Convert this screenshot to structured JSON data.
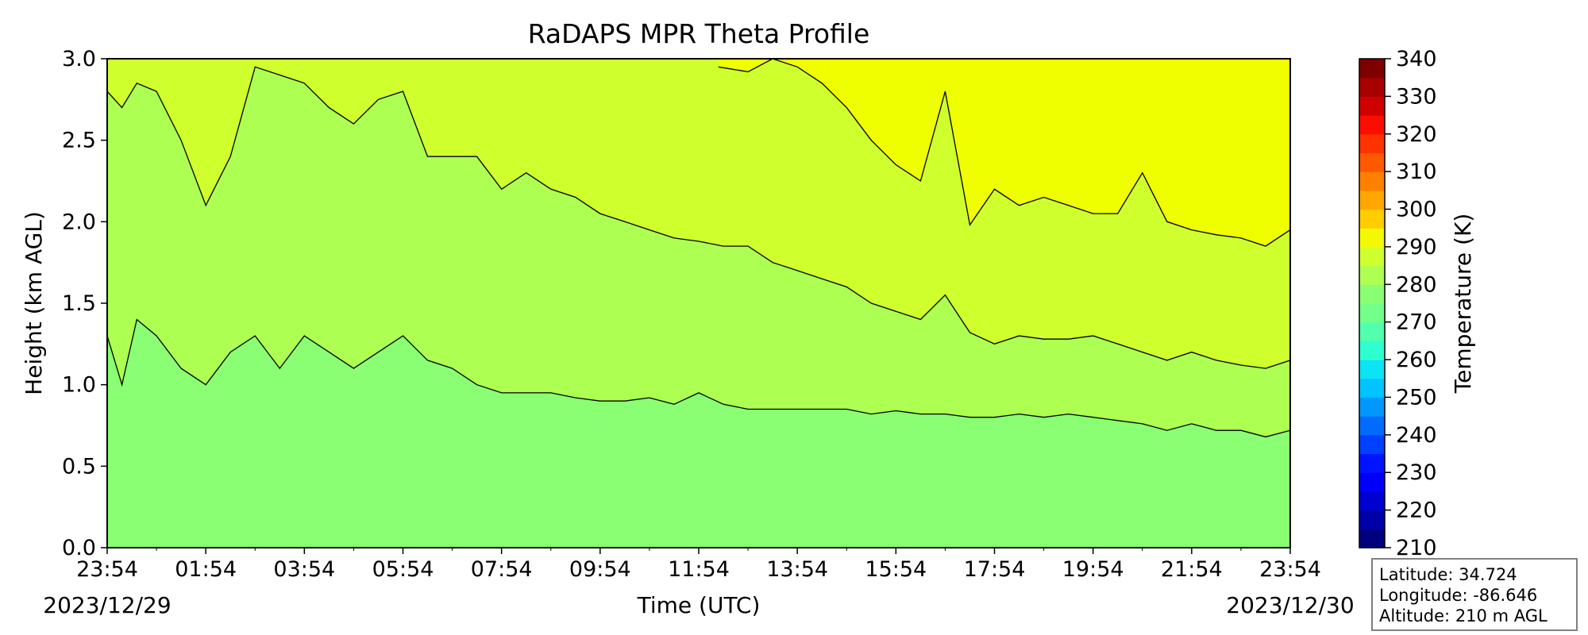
{
  "chart_data": {
    "type": "contour",
    "title": "RaDAPS MPR Theta Profile",
    "xlabel": "Time (UTC)",
    "ylabel": "Height (km AGL)",
    "x_tick_labels": [
      "23:54",
      "01:54",
      "03:54",
      "05:54",
      "07:54",
      "09:54",
      "11:54",
      "13:54",
      "15:54",
      "17:54",
      "19:54",
      "21:54",
      "23:54"
    ],
    "x_range_hours": [
      0,
      24
    ],
    "start_date_label": "2023/12/29",
    "end_date_label": "2023/12/30",
    "y_ticks": [
      "0.0",
      "0.5",
      "1.0",
      "1.5",
      "2.0",
      "2.5",
      "3.0"
    ],
    "ylim": [
      0,
      3.0
    ],
    "colorbar": {
      "label": "Temperature (K)",
      "ticks": [
        210,
        220,
        230,
        240,
        250,
        260,
        270,
        280,
        290,
        300,
        310,
        320,
        330,
        340
      ],
      "min": 210,
      "max": 340,
      "step": 5,
      "colors": [
        "#00007f",
        "#0000a8",
        "#0000d1",
        "#0000fa",
        "#0014ff",
        "#0040ff",
        "#006cff",
        "#0098ff",
        "#00c4ff",
        "#0ce4f4",
        "#2effd0",
        "#52ffad",
        "#73ff8a",
        "#8aff73",
        "#adff52",
        "#d0ff2e",
        "#f4f802",
        "#ffcd00",
        "#ffa700",
        "#ff8000",
        "#ff5900",
        "#ff3300",
        "#fa0e00",
        "#d10000",
        "#a80000",
        "#7f0000"
      ]
    },
    "contour_levels_K": [
      {
        "range": [
          275,
          280
        ],
        "color": "#8aff73"
      },
      {
        "range": [
          280,
          285
        ],
        "color": "#adff52"
      },
      {
        "range": [
          285,
          290
        ],
        "color": "#d0ff2e"
      },
      {
        "range": [
          290,
          295
        ],
        "color": "#f0ff00"
      }
    ],
    "contour_boundaries_km": [
      {
        "name": "280 K",
        "x_hours": [
          0,
          0.3,
          0.6,
          1.0,
          1.5,
          2.0,
          2.5,
          3.0,
          3.5,
          4.0,
          4.5,
          5.0,
          5.5,
          6.0,
          6.5,
          7.0,
          7.5,
          8.0,
          8.5,
          9.0,
          9.5,
          10.0,
          10.5,
          11.0,
          11.5,
          12.0,
          12.5,
          13.0,
          13.5,
          14.0,
          14.5,
          15.0,
          15.5,
          16.0,
          16.5,
          17.0,
          17.5,
          18.0,
          18.5,
          19.0,
          19.5,
          20.0,
          20.5,
          21.0,
          21.5,
          22.0,
          22.5,
          23.0,
          23.5,
          24.0
        ],
        "y_km": [
          1.3,
          1.0,
          1.4,
          1.3,
          1.1,
          1.0,
          1.2,
          1.3,
          1.1,
          1.3,
          1.2,
          1.1,
          1.2,
          1.3,
          1.15,
          1.1,
          1.0,
          0.95,
          0.95,
          0.95,
          0.92,
          0.9,
          0.9,
          0.92,
          0.88,
          0.95,
          0.88,
          0.85,
          0.85,
          0.85,
          0.85,
          0.85,
          0.82,
          0.84,
          0.82,
          0.82,
          0.8,
          0.8,
          0.82,
          0.8,
          0.82,
          0.8,
          0.78,
          0.76,
          0.72,
          0.76,
          0.72,
          0.72,
          0.68,
          0.72
        ]
      },
      {
        "name": "285 K",
        "x_hours": [
          0,
          0.3,
          0.6,
          1.0,
          1.5,
          2.0,
          2.5,
          3.0,
          3.5,
          4.0,
          4.5,
          5.0,
          5.5,
          6.0,
          6.5,
          7.0,
          7.5,
          8.0,
          8.5,
          9.0,
          9.5,
          10.0,
          10.5,
          11.0,
          11.5,
          12.0,
          12.5,
          13.0,
          13.5,
          14.0,
          14.5,
          15.0,
          15.5,
          16.0,
          16.5,
          17.0,
          17.5,
          18.0,
          18.5,
          19.0,
          19.5,
          20.0,
          20.5,
          21.0,
          21.5,
          22.0,
          22.5,
          23.0,
          23.5,
          24.0
        ],
        "y_km": [
          2.8,
          2.7,
          2.85,
          2.8,
          2.5,
          2.1,
          2.4,
          2.95,
          2.9,
          2.85,
          2.7,
          2.6,
          2.75,
          2.8,
          2.4,
          2.4,
          2.4,
          2.2,
          2.3,
          2.2,
          2.15,
          2.05,
          2.0,
          1.95,
          1.9,
          1.88,
          1.85,
          1.85,
          1.75,
          1.7,
          1.65,
          1.6,
          1.5,
          1.45,
          1.4,
          1.55,
          1.32,
          1.25,
          1.3,
          1.28,
          1.28,
          1.3,
          1.25,
          1.2,
          1.15,
          1.2,
          1.15,
          1.12,
          1.1,
          1.15
        ]
      },
      {
        "name": "290 K",
        "x_hours": [
          12.4,
          13.0,
          13.5,
          14.0,
          14.5,
          15.0,
          15.5,
          16.0,
          16.5,
          17.0,
          17.5,
          18.0,
          18.5,
          19.0,
          19.5,
          20.0,
          20.5,
          21.0,
          21.5,
          22.0,
          22.5,
          23.0,
          23.5,
          24.0
        ],
        "y_km": [
          2.95,
          2.92,
          3.0,
          2.95,
          2.85,
          2.7,
          2.5,
          2.35,
          2.25,
          2.8,
          1.98,
          2.2,
          2.1,
          2.15,
          2.1,
          2.05,
          2.05,
          2.3,
          2.0,
          1.95,
          1.92,
          1.9,
          1.85,
          1.95
        ]
      }
    ]
  },
  "info_box": {
    "latitude": "Latitude: 34.724",
    "longitude": "Longitude: -86.646",
    "altitude": "Altitude: 210 m AGL"
  }
}
